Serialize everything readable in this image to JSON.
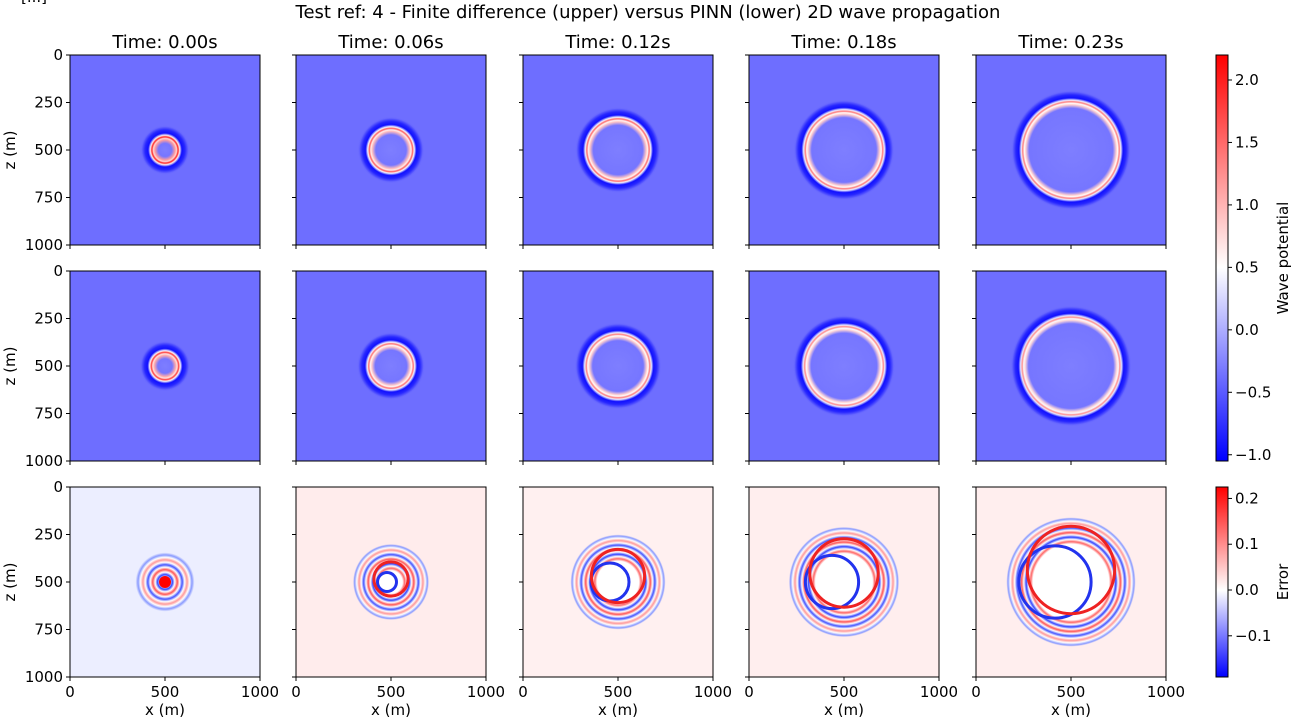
{
  "header_fragment": "[...]",
  "chart_data": {
    "type": "heatmap",
    "title": "Test ref: 4 - Finite difference (upper) versus PINN (lower) 2D wave propagation",
    "columns": [
      "Time: 0.00s",
      "Time: 0.06s",
      "Time: 0.12s",
      "Time: 0.18s",
      "Time: 0.23s"
    ],
    "times": [
      0.0,
      0.06,
      0.12,
      0.18,
      0.23
    ],
    "rows": [
      "Finite difference",
      "PINN",
      "Error"
    ],
    "xlabel": "x (m)",
    "ylabel": "z (m)",
    "xlim": [
      0,
      1000
    ],
    "ylim": [
      1000,
      0
    ],
    "xticks": [
      "0",
      "500",
      "1000"
    ],
    "yticks": [
      "0",
      "250",
      "500",
      "750",
      "1000"
    ],
    "source_center_m": [
      500,
      500
    ],
    "wavefront_radius_m": [
      75,
      120,
      170,
      210,
      260
    ],
    "colorbars": [
      {
        "label": "Wave potential",
        "range": [
          -1.05,
          2.2
        ],
        "ticks": [
          "−1.0",
          "−0.5",
          "0.0",
          "0.5",
          "1.0",
          "1.5",
          "2.0"
        ],
        "tick_values": [
          -1.0,
          -0.5,
          0.0,
          0.5,
          1.0,
          1.5,
          2.0
        ]
      },
      {
        "label": "Error",
        "range": [
          -0.19,
          0.225
        ],
        "ticks": [
          "−0.1",
          "0.0",
          "0.1",
          "0.2"
        ],
        "tick_values": [
          -0.1,
          0.0,
          0.1,
          0.2
        ]
      }
    ],
    "colormap": "bwr",
    "colors": {
      "low": "#0000ff",
      "mid": "#ffffff",
      "high": "#ff0000"
    }
  }
}
